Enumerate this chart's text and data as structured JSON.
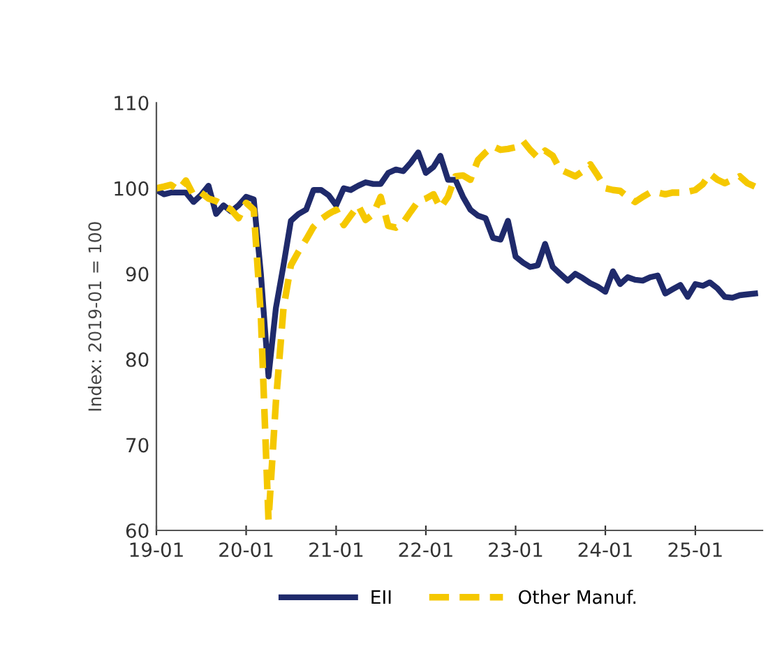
{
  "chart_data": {
    "type": "line",
    "ylabel": "Index: 2019-01 = 100",
    "x": [
      "2019-01",
      "2019-02",
      "2019-03",
      "2019-04",
      "2019-05",
      "2019-06",
      "2019-07",
      "2019-08",
      "2019-09",
      "2019-10",
      "2019-11",
      "2019-12",
      "2020-01",
      "2020-02",
      "2020-03",
      "2020-04",
      "2020-05",
      "2020-06",
      "2020-07",
      "2020-08",
      "2020-09",
      "2020-10",
      "2020-11",
      "2020-12",
      "2021-01",
      "2021-02",
      "2021-03",
      "2021-04",
      "2021-05",
      "2021-06",
      "2021-07",
      "2021-08",
      "2021-09",
      "2021-10",
      "2021-11",
      "2021-12",
      "2022-01",
      "2022-02",
      "2022-03",
      "2022-04",
      "2022-05",
      "2022-06",
      "2022-07",
      "2022-08",
      "2022-09",
      "2022-10",
      "2022-11",
      "2022-12",
      "2023-01",
      "2023-02",
      "2023-03",
      "2023-04",
      "2023-05",
      "2023-06",
      "2023-07",
      "2023-08",
      "2023-09",
      "2023-10",
      "2023-11",
      "2023-12",
      "2024-01",
      "2024-02",
      "2024-03",
      "2024-04",
      "2024-05",
      "2024-06",
      "2024-07",
      "2024-08",
      "2024-09",
      "2024-10",
      "2024-11",
      "2024-12",
      "2025-01",
      "2025-02",
      "2025-03",
      "2025-04",
      "2025-05",
      "2025-06",
      "2025-07",
      "2025-08",
      "2025-09"
    ],
    "series": [
      {
        "name": "EII",
        "color": "#1f2a6b",
        "line_style": "solid",
        "values": [
          99.8,
          99.3,
          99.5,
          99.5,
          99.5,
          98.4,
          99.2,
          100.3,
          97.0,
          98.0,
          97.3,
          98.0,
          99.0,
          98.7,
          90,
          78,
          86,
          91,
          96.2,
          97,
          97.5,
          99.8,
          99.8,
          99.2,
          98,
          100,
          99.8,
          100.3,
          100.7,
          100.5,
          100.5,
          101.8,
          102.2,
          102,
          103,
          104.2,
          101.8,
          102.5,
          103.8,
          101,
          101,
          99,
          97.5,
          96.8,
          96.5,
          94.2,
          94,
          96.2,
          92,
          91.3,
          90.8,
          91,
          93.5,
          90.8,
          90,
          89.2,
          90,
          89.5,
          88.9,
          88.5,
          87.9,
          90.3,
          88.8,
          89.6,
          89.3,
          89.2,
          89.6,
          89.8,
          87.7,
          88.2,
          88.7,
          87.3,
          88.8,
          88.6,
          89,
          88.3,
          87.3,
          87.2,
          87.5,
          87.6,
          87.7
        ]
      },
      {
        "name": "Other Manuf.",
        "color": "#f5c800",
        "line_style": "dashed",
        "values": [
          100,
          100.2,
          100.4,
          99.8,
          100.9,
          99.2,
          99.5,
          98.8,
          98.5,
          98,
          97.5,
          96.5,
          98.3,
          97.5,
          85,
          61.2,
          75,
          86,
          91,
          92.6,
          94,
          95.5,
          96.4,
          97,
          97.5,
          95.7,
          96.8,
          98,
          96.3,
          97,
          99,
          95.6,
          95.4,
          96,
          97.3,
          98.5,
          98.8,
          99.3,
          97.7,
          99,
          101.4,
          101.5,
          101,
          103.3,
          104.2,
          104.9,
          104.5,
          104.6,
          104.8,
          105.5,
          104.5,
          103.6,
          104.4,
          103.8,
          102.2,
          101.8,
          101.4,
          102,
          102.8,
          101.5,
          100,
          99.8,
          99.7,
          99,
          98.4,
          99,
          99.5,
          99.5,
          99.3,
          99.5,
          99.5,
          99.6,
          99.8,
          100.5,
          101.7,
          101,
          100.6,
          101,
          101.4,
          100.6,
          100.2
        ]
      }
    ],
    "xlim": [
      "2019-01",
      "2025-10"
    ],
    "xticks": [
      {
        "value": "2019-01",
        "label": "19-01"
      },
      {
        "value": "2020-01",
        "label": "20-01"
      },
      {
        "value": "2021-01",
        "label": "21-01"
      },
      {
        "value": "2022-01",
        "label": "22-01"
      },
      {
        "value": "2023-01",
        "label": "23-01"
      },
      {
        "value": "2024-01",
        "label": "24-01"
      },
      {
        "value": "2025-01",
        "label": "25-01"
      }
    ],
    "ylim": [
      60,
      110
    ],
    "yticks": [
      60,
      70,
      80,
      90,
      100,
      110
    ],
    "grid": false,
    "legend": "bottom"
  }
}
